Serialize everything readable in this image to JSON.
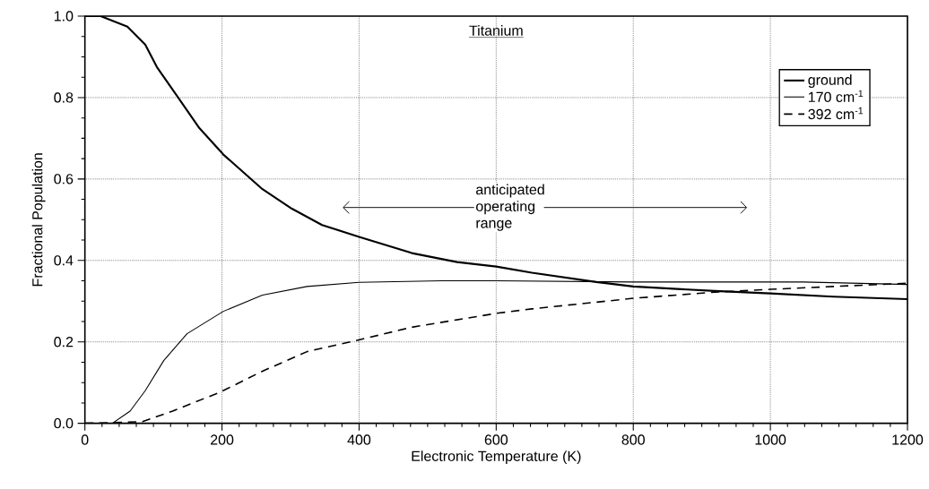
{
  "chart_data": {
    "type": "line",
    "title": "Titanium",
    "xlabel": "Electronic Temperature (K)",
    "ylabel": "Fractional Population",
    "xlim": [
      0,
      1200
    ],
    "ylim": [
      0,
      1.0
    ],
    "xticks": [
      0,
      200,
      400,
      600,
      800,
      1000,
      1200
    ],
    "yticks": [
      {
        "value": 0,
        "label": "0.0"
      },
      0.2,
      0.4,
      0.6,
      0.8,
      {
        "value": 1,
        "label": "1.0"
      }
    ],
    "grid": true,
    "legend": "top right",
    "marker": "none",
    "annotations": [
      "anticipated operating range"
    ],
    "series": [
      {
        "name": "ground",
        "color": "#000000",
        "line_style": "solid",
        "x": [
          0,
          23,
          62,
          88,
          105,
          136,
          167,
          202,
          259,
          302,
          346,
          400,
          477,
          543,
          600,
          652,
          746,
          800,
          919,
          1000,
          1092,
          1200
        ],
        "values": [
          1.0,
          1.0,
          0.974,
          0.93,
          0.875,
          0.8,
          0.725,
          0.66,
          0.575,
          0.527,
          0.487,
          0.458,
          0.418,
          0.396,
          0.385,
          0.37,
          0.347,
          0.336,
          0.325,
          0.319,
          0.311,
          0.305
        ]
      },
      {
        "name": "170 cm$^{-1}$",
        "color": "#000000",
        "line_style": "solid",
        "x": [
          0,
          40,
          66,
          88,
          115,
          149,
          202,
          259,
          324,
          400,
          521,
          600,
          800,
          1048,
          1200
        ],
        "values": [
          0,
          0,
          0.03,
          0.08,
          0.154,
          0.22,
          0.275,
          0.315,
          0.336,
          0.346,
          0.35,
          0.35,
          0.347,
          0.347,
          0.341
        ]
      },
      {
        "name": "392 cm$^{-1}$",
        "color": "#000000",
        "line_style": "dashed",
        "x": [
          0,
          84,
          128,
          198,
          259,
          324,
          400,
          477,
          600,
          652,
          800,
          919,
          1000,
          1092,
          1200
        ],
        "values": [
          0,
          0.004,
          0.03,
          0.077,
          0.128,
          0.176,
          0.205,
          0.236,
          0.27,
          0.281,
          0.307,
          0.322,
          0.329,
          0.336,
          0.344
        ]
      }
    ]
  }
}
